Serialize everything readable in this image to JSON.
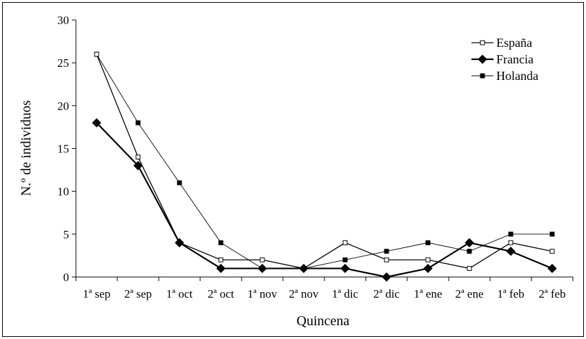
{
  "chart_data": {
    "type": "line",
    "xlabel": "Quincena",
    "ylabel": "N.º de individuos",
    "ylim": [
      0,
      30
    ],
    "yticks": [
      0,
      5,
      10,
      15,
      20,
      25,
      30
    ],
    "grid": false,
    "legend_position": "top-right",
    "categories": [
      "1ª sep",
      "2ª sep",
      "1ª oct",
      "2ª oct",
      "1ª nov",
      "2ª nov",
      "1ª dic",
      "2ª dic",
      "1ª ene",
      "2ª ene",
      "1ª feb",
      "2ª feb"
    ],
    "series": [
      {
        "name": "España",
        "marker": "open-square",
        "values": [
          26,
          14,
          4,
          2,
          2,
          1,
          4,
          2,
          2,
          1,
          4,
          3
        ]
      },
      {
        "name": "Francia",
        "marker": "filled-diamond",
        "values": [
          18,
          13,
          4,
          1,
          1,
          1,
          1,
          0,
          1,
          4,
          3,
          1
        ]
      },
      {
        "name": "Holanda",
        "marker": "filled-square",
        "values": [
          26,
          18,
          11,
          4,
          1,
          1,
          2,
          3,
          4,
          3,
          5,
          5
        ]
      }
    ]
  }
}
